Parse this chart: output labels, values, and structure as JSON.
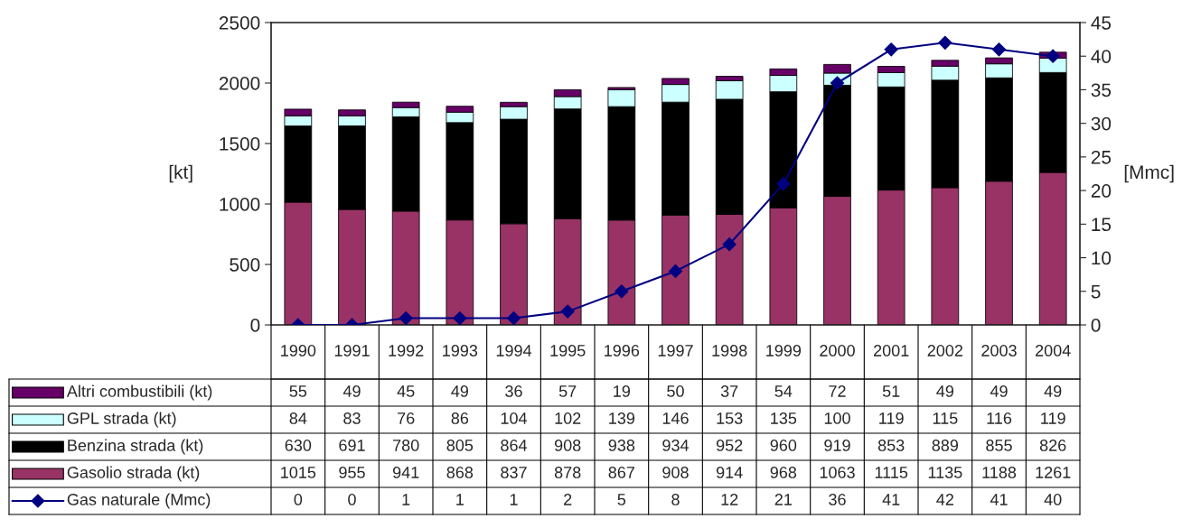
{
  "chart_data": {
    "type": "bar",
    "stacked": true,
    "categories": [
      "1990",
      "1991",
      "1992",
      "1993",
      "1994",
      "1995",
      "1996",
      "1997",
      "1998",
      "1999",
      "2000",
      "2001",
      "2002",
      "2003",
      "2004"
    ],
    "series": [
      {
        "name": "Gasolio strada (kt)",
        "color": "#993366",
        "values": [
          1015,
          955,
          941,
          868,
          837,
          878,
          867,
          908,
          914,
          968,
          1063,
          1115,
          1135,
          1188,
          1261
        ]
      },
      {
        "name": "Benzina strada (kt)",
        "color": "#000000",
        "values": [
          630,
          691,
          780,
          805,
          864,
          908,
          938,
          934,
          952,
          960,
          919,
          853,
          889,
          855,
          826
        ]
      },
      {
        "name": "GPL strada (kt)",
        "color": "#ccffff",
        "values": [
          84,
          83,
          76,
          86,
          104,
          102,
          139,
          146,
          153,
          135,
          100,
          119,
          115,
          116,
          119
        ]
      },
      {
        "name": "Altri combustibili (kt)",
        "color": "#660066",
        "values": [
          55,
          49,
          45,
          49,
          36,
          57,
          19,
          50,
          37,
          54,
          72,
          51,
          49,
          49,
          49
        ]
      },
      {
        "name": "Gas naturale (Mmc)",
        "color": "#000080",
        "type": "line",
        "axis": "y2",
        "marker": "diamond",
        "values": [
          0,
          0,
          1,
          1,
          1,
          2,
          5,
          8,
          12,
          21,
          36,
          41,
          42,
          41,
          40
        ]
      }
    ],
    "ylim": [
      0,
      2500
    ],
    "yticks": [
      0,
      500,
      1000,
      1500,
      2000,
      2500
    ],
    "y2lim": [
      0,
      45
    ],
    "y2ticks": [
      0,
      5,
      10,
      15,
      20,
      25,
      30,
      35,
      40,
      45
    ],
    "ylabel": "[kt]",
    "y2label": "[Mmc]",
    "data_labels": true,
    "legend": "bottom left",
    "grid": false
  }
}
